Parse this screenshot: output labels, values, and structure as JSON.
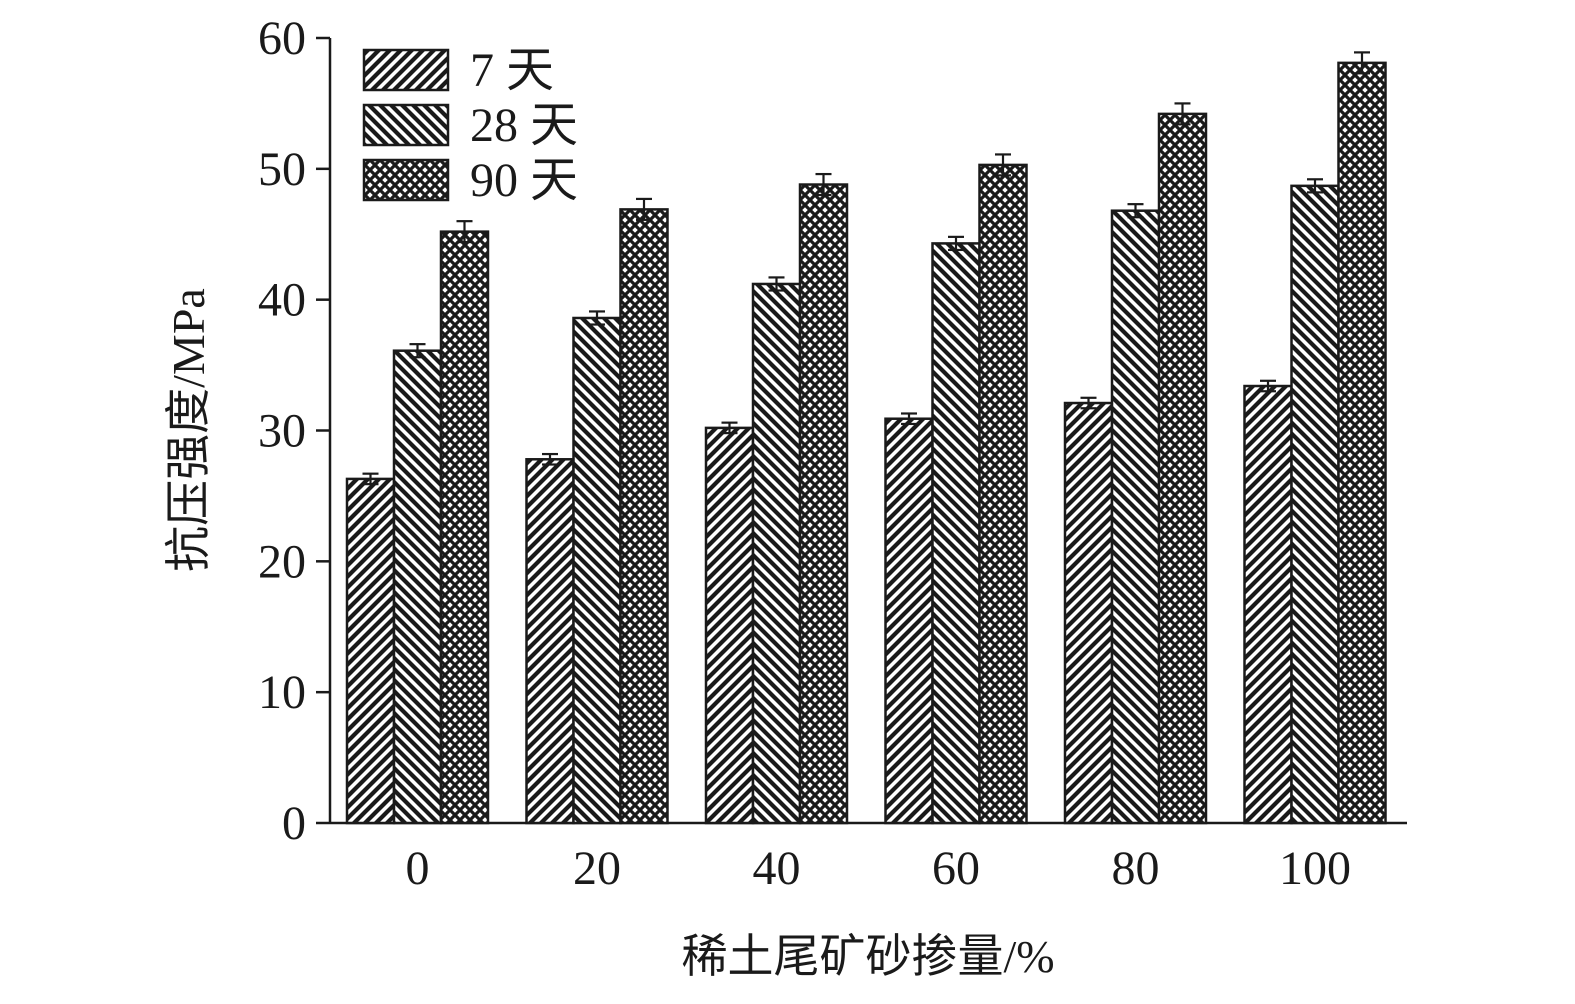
{
  "chart_data": {
    "type": "bar",
    "xlabel": "稀土尾矿砂掺量/%",
    "ylabel": "抗压强度/MPa",
    "categories": [
      "0",
      "20",
      "40",
      "60",
      "80",
      "100"
    ],
    "ylim": [
      0,
      60
    ],
    "yticks": [
      "0",
      "10",
      "20",
      "30",
      "40",
      "50",
      "60"
    ],
    "legend_position": "top-left",
    "grid": false,
    "series": [
      {
        "name": "7 天",
        "pattern": "diagonal-up",
        "values": [
          26.3,
          27.8,
          30.2,
          30.9,
          32.1,
          33.4
        ],
        "errors": [
          0.4,
          0.4,
          0.4,
          0.4,
          0.4,
          0.4
        ]
      },
      {
        "name": "28 天",
        "pattern": "diagonal-down",
        "values": [
          36.1,
          38.6,
          41.2,
          44.3,
          46.8,
          48.7
        ],
        "errors": [
          0.5,
          0.5,
          0.5,
          0.5,
          0.5,
          0.5
        ]
      },
      {
        "name": "90 天",
        "pattern": "crosshatch",
        "values": [
          45.2,
          46.9,
          48.8,
          50.3,
          54.2,
          58.1
        ],
        "errors": [
          0.8,
          0.8,
          0.8,
          0.8,
          0.8,
          0.8
        ]
      }
    ],
    "colors": {
      "ink": "#1a1a1a",
      "background": "#ffffff"
    }
  }
}
